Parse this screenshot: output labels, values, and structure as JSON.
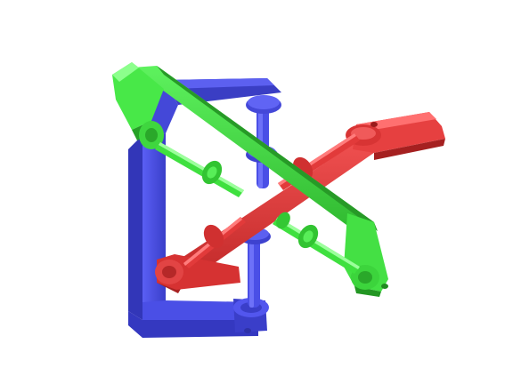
{
  "scene": {
    "subject": "three-axis-linkage-model",
    "background": "#ffffff",
    "colors": {
      "blue": "#4a4fe6",
      "blue_dark": "#2e31a8",
      "blue_light": "#7c80ff",
      "green": "#3fe03f",
      "green_dark": "#259c25",
      "green_light": "#8cff8c",
      "red": "#e23a3a",
      "red_dark": "#a31f1f",
      "red_light": "#ff7c7c"
    },
    "parts": [
      {
        "name": "blue-bracket",
        "color": "blue"
      },
      {
        "name": "green-bracket",
        "color": "green"
      },
      {
        "name": "red-bracket",
        "color": "red"
      }
    ]
  }
}
